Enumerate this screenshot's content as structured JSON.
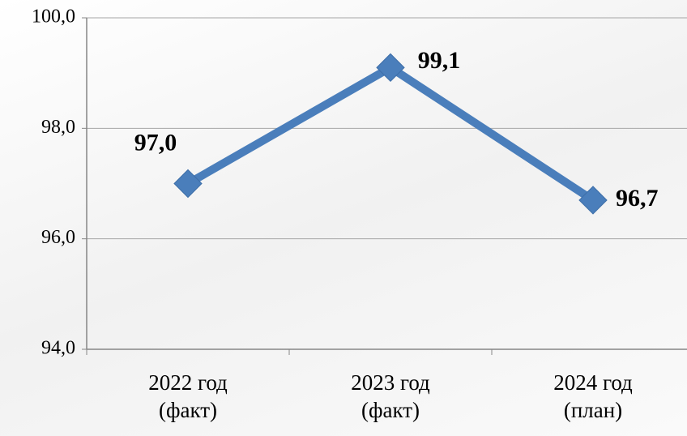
{
  "chart_data": {
    "type": "line",
    "categories": [
      "2022 год\n(факт)",
      "2023 год\n(факт)",
      "2024 год\n(план)"
    ],
    "series": [
      {
        "color": "#4a7ebb",
        "values": [
          97.0,
          99.1,
          96.7
        ],
        "value_labels": [
          "97,0",
          "99,1",
          "96,7"
        ]
      }
    ],
    "ylim": [
      94,
      100
    ],
    "yticks": [
      {
        "value": 94,
        "label": "94,0"
      },
      {
        "value": 96,
        "label": "96,0"
      },
      {
        "value": 98,
        "label": "98,0"
      },
      {
        "value": 100,
        "label": "100,0"
      }
    ],
    "grid": true
  }
}
